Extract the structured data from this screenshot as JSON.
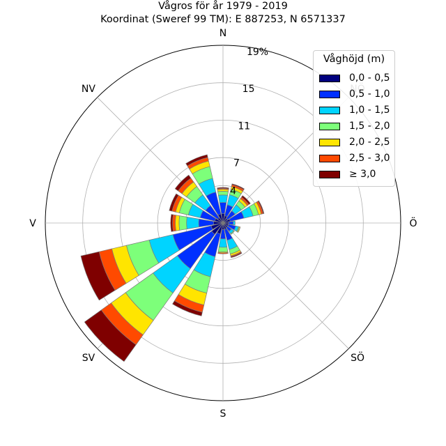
{
  "chart_data": {
    "type": "windrose",
    "title": [
      "Vågros för år 1979 - 2019",
      "Koordinat (Sweref 99 TM): E 887253, N 6571337"
    ],
    "directions": [
      "N",
      "NNÖ",
      "NÖ",
      "ÖNÖ",
      "Ö",
      "ÖSÖ",
      "SÖ",
      "SSÖ",
      "S",
      "SSV",
      "SV",
      "VSV",
      "V",
      "VNV",
      "NV",
      "NNV"
    ],
    "compass_labels": [
      "N",
      "NÖ",
      "Ö",
      "SÖ",
      "S",
      "SV",
      "V",
      "NV"
    ],
    "radial_ticks": [
      "4",
      "7",
      "11",
      "15",
      "19%"
    ],
    "radial_tick_values": [
      4,
      7,
      11,
      15,
      19
    ],
    "rmax": 19,
    "legend_title": "Våghöjd (m)",
    "bins": [
      "0,0 - 0,5",
      "0,5 - 1,0",
      "1,0 - 1,5",
      "1,5 - 2,0",
      "2,0 - 2,5",
      "2,5 - 3,0",
      "≥ 3,0"
    ],
    "colors": [
      "#00007f",
      "#0030ff",
      "#00d4ff",
      "#7dff7a",
      "#ffe500",
      "#ff4a00",
      "#7f0000"
    ],
    "values": [
      [
        1.0,
        1.2,
        0.8,
        0.4,
        0.2,
        0.1,
        0.1
      ],
      [
        0.8,
        1.2,
        1.1,
        0.6,
        0.3,
        0.2,
        0.1
      ],
      [
        0.6,
        1.0,
        0.8,
        0.5,
        0.3,
        0.2,
        0.2
      ],
      [
        0.8,
        1.5,
        1.0,
        0.6,
        0.3,
        0.2,
        0.1
      ],
      [
        0.6,
        0.5,
        0.2,
        0.0,
        0.0,
        0.0,
        0.0
      ],
      [
        0.6,
        0.8,
        0.3,
        0.1,
        0.1,
        0.0,
        0.0
      ],
      [
        0.6,
        0.5,
        0.3,
        0.1,
        0.0,
        0.0,
        0.0
      ],
      [
        0.7,
        1.2,
        1.0,
        0.5,
        0.2,
        0.1,
        0.1
      ],
      [
        0.7,
        1.0,
        0.9,
        0.5,
        0.1,
        0.1,
        0.0
      ],
      [
        1.2,
        2.5,
        2.2,
        1.8,
        1.3,
        0.8,
        0.4
      ],
      [
        1.5,
        4.5,
        3.2,
        3.6,
        1.9,
        1.3,
        2.2
      ],
      [
        1.3,
        4.2,
        2.6,
        2.5,
        1.6,
        1.4,
        2.0
      ],
      [
        1.0,
        1.6,
        1.3,
        0.8,
        0.4,
        0.3,
        0.2
      ],
      [
        0.9,
        1.6,
        1.3,
        1.0,
        0.4,
        0.4,
        0.3
      ],
      [
        0.7,
        1.6,
        1.4,
        1.1,
        0.6,
        0.5,
        0.4
      ],
      [
        1.0,
        2.4,
        1.5,
        1.3,
        0.6,
        0.4,
        0.3
      ]
    ]
  }
}
